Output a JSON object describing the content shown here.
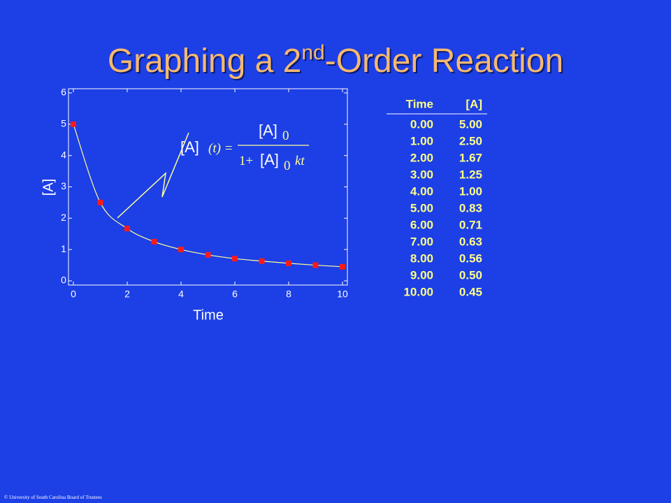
{
  "title_parts": [
    "Graphing a 2",
    "nd",
    "-Order Reaction"
  ],
  "chart_data": {
    "type": "scatter",
    "x_label": "Time",
    "y_label": "[A]",
    "x": [
      0,
      1,
      2,
      3,
      4,
      5,
      6,
      7,
      8,
      9,
      10
    ],
    "values": [
      5.0,
      2.5,
      1.67,
      1.25,
      1.0,
      0.83,
      0.71,
      0.63,
      0.56,
      0.5,
      0.45
    ],
    "color": "#ff1a1a",
    "line": true,
    "line_color": "#ffff99",
    "xlim": [
      0,
      10
    ],
    "xticks": [
      0,
      2,
      4,
      6,
      8,
      10
    ],
    "ylim": [
      0,
      6
    ],
    "yticks": [
      0,
      1,
      2,
      3,
      4,
      5,
      6
    ],
    "grid": false
  },
  "equation": {
    "lhs": "[A]",
    "lhs_arg": "(t) =",
    "num": "[A]",
    "num_sub": "0",
    "den_one": "1+",
    "den": "[A]",
    "den_sub": "0",
    "den_kt": "kt"
  },
  "table": {
    "header": [
      "Time",
      "[A]"
    ],
    "rows": [
      [
        "0.00",
        "5.00"
      ],
      [
        "1.00",
        "2.50"
      ],
      [
        "2.00",
        "1.67"
      ],
      [
        "3.00",
        "1.25"
      ],
      [
        "4.00",
        "1.00"
      ],
      [
        "5.00",
        "0.83"
      ],
      [
        "6.00",
        "0.71"
      ],
      [
        "7.00",
        "0.63"
      ],
      [
        "8.00",
        "0.56"
      ],
      [
        "9.00",
        "0.50"
      ],
      [
        "10.00",
        "0.45"
      ]
    ]
  },
  "footer": "© University of South Carolina Board of Trustees"
}
